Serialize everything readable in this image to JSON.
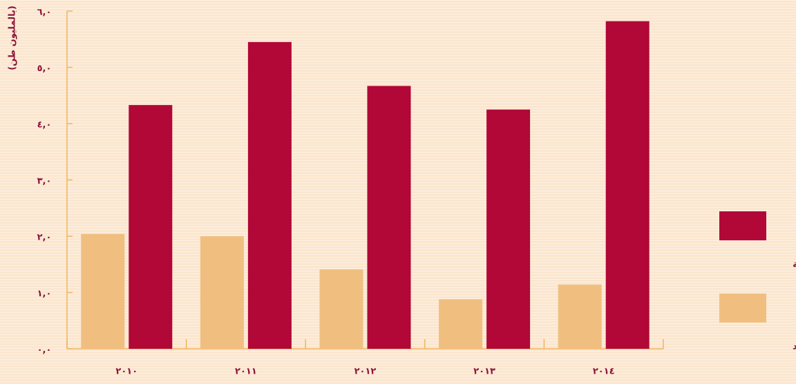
{
  "chart_data": {
    "type": "bar",
    "y_label": "(بالمليون طن)",
    "categories": [
      "٢٠١٠",
      "٢٠١١",
      "٢٠١٢",
      "٢٠١٣",
      "٢٠١٤"
    ],
    "series": [
      {
        "name": "السيارات الشاحنة",
        "color": "#b10838",
        "values": [
          4.33,
          5.45,
          4.67,
          4.25,
          5.82
        ]
      },
      {
        "name": "سكة الحديد",
        "color": "#f0bf80",
        "values": [
          2.04,
          2.0,
          1.41,
          0.88,
          1.14
        ]
      }
    ],
    "ylim": [
      0,
      6
    ],
    "yticks": [
      {
        "value": 0,
        "label": "٠,٠"
      },
      {
        "value": 1,
        "label": "١,٠"
      },
      {
        "value": 2,
        "label": "٢,٠"
      },
      {
        "value": 3,
        "label": "٣,٠"
      },
      {
        "value": 4,
        "label": "٤,٠"
      },
      {
        "value": 5,
        "label": "٥,٠"
      },
      {
        "value": 6,
        "label": "٦,٠"
      }
    ],
    "legend": "right"
  }
}
